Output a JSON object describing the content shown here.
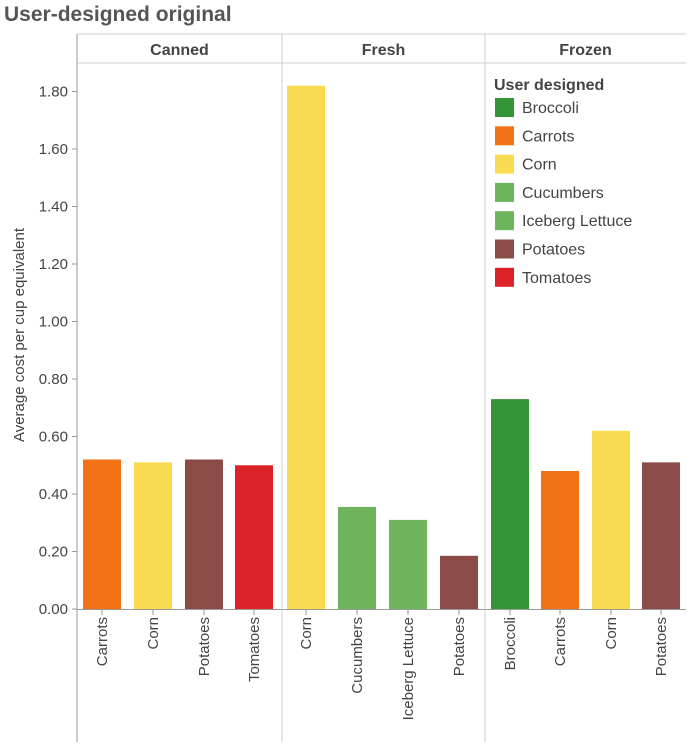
{
  "title": "User-designed original",
  "chart_data": {
    "type": "bar",
    "title": "User-designed original",
    "ylabel": "Average cost per cup equivalent",
    "xlabel": "",
    "ylim": [
      0,
      1.9
    ],
    "yticks": [
      "0.00",
      "0.20",
      "0.40",
      "0.60",
      "0.80",
      "1.00",
      "1.20",
      "1.40",
      "1.60",
      "1.80"
    ],
    "panels": [
      {
        "name": "Canned",
        "bars": [
          {
            "category": "Carrots",
            "value": 0.52
          },
          {
            "category": "Corn",
            "value": 0.51
          },
          {
            "category": "Potatoes",
            "value": 0.52
          },
          {
            "category": "Tomatoes",
            "value": 0.5
          }
        ]
      },
      {
        "name": "Fresh",
        "bars": [
          {
            "category": "Corn",
            "value": 1.82
          },
          {
            "category": "Cucumbers",
            "value": 0.355
          },
          {
            "category": "Iceberg Lettuce",
            "value": 0.31
          },
          {
            "category": "Potatoes",
            "value": 0.185
          }
        ]
      },
      {
        "name": "Frozen",
        "bars": [
          {
            "category": "Broccoli",
            "value": 0.73
          },
          {
            "category": "Carrots",
            "value": 0.48
          },
          {
            "category": "Corn",
            "value": 0.62
          },
          {
            "category": "Potatoes",
            "value": 0.51
          }
        ]
      }
    ],
    "legend": {
      "title": "User designed",
      "position": "top-right",
      "entries": [
        {
          "name": "Broccoli",
          "color": "#339438"
        },
        {
          "name": "Carrots",
          "color": "#f47216"
        },
        {
          "name": "Corn",
          "color": "#f8db50"
        },
        {
          "name": "Cucumbers",
          "color": "#6db45d"
        },
        {
          "name": "Iceberg Lettuce",
          "color": "#6db45d"
        },
        {
          "name": "Potatoes",
          "color": "#8b4b46"
        },
        {
          "name": "Tomatoes",
          "color": "#db2329"
        }
      ]
    },
    "grid": false
  }
}
